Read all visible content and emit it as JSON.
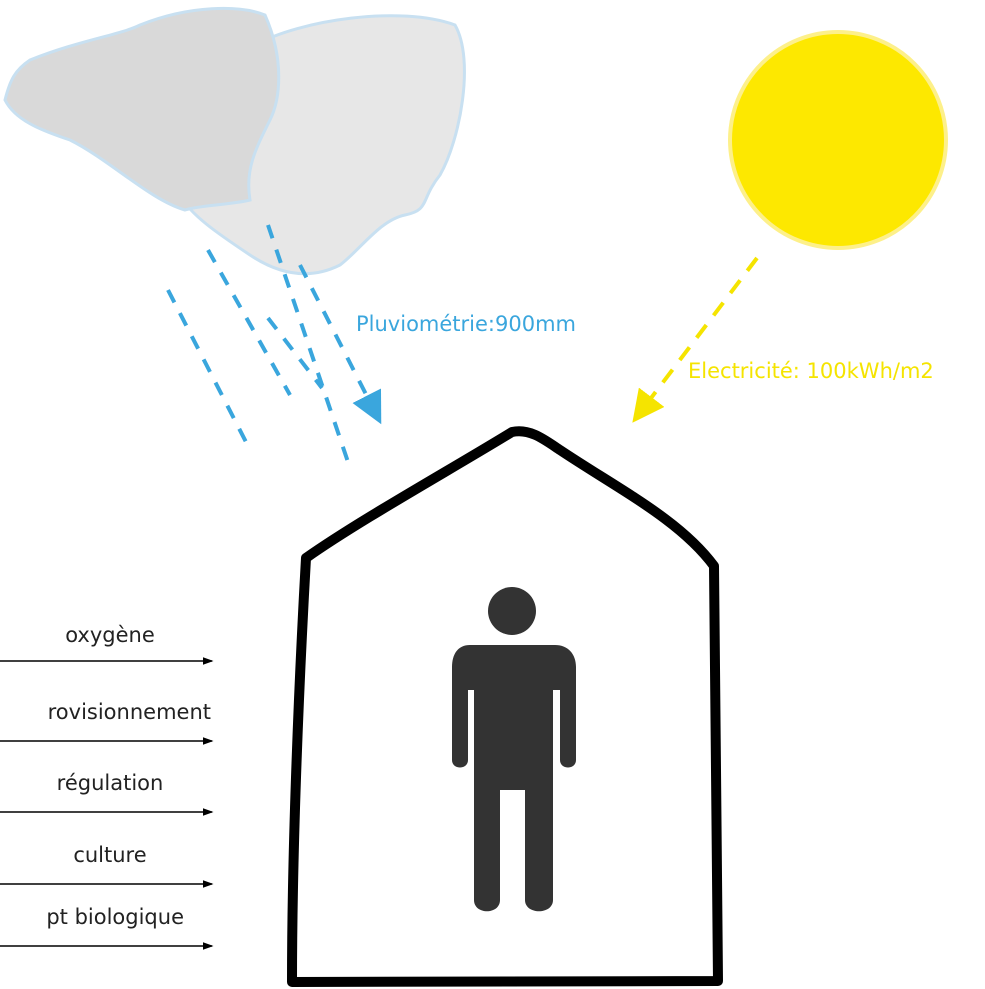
{
  "annotations": {
    "rain": "Pluviométrie:900mm",
    "sun": "Electricité: 100kWh/m2"
  },
  "services": [
    "oxygène",
    "rovisionnement",
    "régulation",
    "culture",
    "pt biologique"
  ]
}
